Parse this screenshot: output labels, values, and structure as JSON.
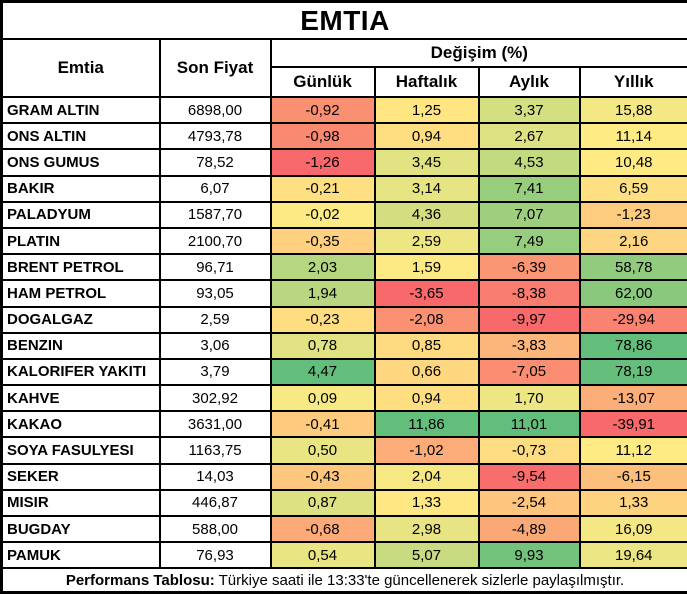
{
  "title": "EMTIA",
  "columns": {
    "emtia": "Emtia",
    "son_fiyat": "Son Fiyat",
    "degisim": "Değişim (%)",
    "periods": [
      "Günlük",
      "Haftalık",
      "Aylık",
      "Yıllık"
    ]
  },
  "heatmap_scale": {
    "min_color": "#F8696B",
    "mid_color": "#FFEB84",
    "max_color": "#63BE7B",
    "note": "red-yellow-green 3-color scale per column, midpoint at 50th percentile"
  },
  "footer": {
    "bold_label": "Performans Tablosu:",
    "text": "Türkiye saati ile 13:33'te güncellenerek sizlerle paylaşılmıştır."
  },
  "chart_data": {
    "type": "table",
    "title": "EMTIA",
    "columns": [
      "Emtia",
      "Son Fiyat",
      "Günlük",
      "Haftalık",
      "Aylık",
      "Yıllık"
    ],
    "rows": [
      {
        "name": "GRAM ALTIN",
        "son_fiyat": "6898,00",
        "changes": [
          "-0,92",
          "1,25",
          "3,37",
          "15,88"
        ]
      },
      {
        "name": "ONS ALTIN",
        "son_fiyat": "4793,78",
        "changes": [
          "-0,98",
          "0,94",
          "2,67",
          "11,14"
        ]
      },
      {
        "name": "ONS GUMUS",
        "son_fiyat": "78,52",
        "changes": [
          "-1,26",
          "3,45",
          "4,53",
          "10,48"
        ]
      },
      {
        "name": "BAKIR",
        "son_fiyat": "6,07",
        "changes": [
          "-0,21",
          "3,14",
          "7,41",
          "6,59"
        ]
      },
      {
        "name": "PALADYUM",
        "son_fiyat": "1587,70",
        "changes": [
          "-0,02",
          "4,36",
          "7,07",
          "-1,23"
        ]
      },
      {
        "name": "PLATIN",
        "son_fiyat": "2100,70",
        "changes": [
          "-0,35",
          "2,59",
          "7,49",
          "2,16"
        ]
      },
      {
        "name": "BRENT PETROL",
        "son_fiyat": "96,71",
        "changes": [
          "2,03",
          "1,59",
          "-6,39",
          "58,78"
        ]
      },
      {
        "name": "HAM PETROL",
        "son_fiyat": "93,05",
        "changes": [
          "1,94",
          "-3,65",
          "-8,38",
          "62,00"
        ]
      },
      {
        "name": "DOGALGAZ",
        "son_fiyat": "2,59",
        "changes": [
          "-0,23",
          "-2,08",
          "-9,97",
          "-29,94"
        ]
      },
      {
        "name": "BENZIN",
        "son_fiyat": "3,06",
        "changes": [
          "0,78",
          "0,85",
          "-3,83",
          "78,86"
        ]
      },
      {
        "name": "KALORIFER YAKITI",
        "son_fiyat": "3,79",
        "changes": [
          "4,47",
          "0,66",
          "-7,05",
          "78,19"
        ]
      },
      {
        "name": "KAHVE",
        "son_fiyat": "302,92",
        "changes": [
          "0,09",
          "0,94",
          "1,70",
          "-13,07"
        ]
      },
      {
        "name": "KAKAO",
        "son_fiyat": "3631,00",
        "changes": [
          "-0,41",
          "11,86",
          "11,01",
          "-39,91"
        ]
      },
      {
        "name": "SOYA FASULYESI",
        "son_fiyat": "1163,75",
        "changes": [
          "0,50",
          "-1,02",
          "-0,73",
          "11,12"
        ]
      },
      {
        "name": "SEKER",
        "son_fiyat": "14,03",
        "changes": [
          "-0,43",
          "2,04",
          "-9,54",
          "-6,15"
        ]
      },
      {
        "name": "MISIR",
        "son_fiyat": "446,87",
        "changes": [
          "0,87",
          "1,33",
          "-2,54",
          "1,33"
        ]
      },
      {
        "name": "BUGDAY",
        "son_fiyat": "588,00",
        "changes": [
          "-0,68",
          "2,98",
          "-4,89",
          "16,09"
        ]
      },
      {
        "name": "PAMUK",
        "son_fiyat": "76,93",
        "changes": [
          "0,54",
          "5,07",
          "9,93",
          "19,64"
        ]
      }
    ]
  }
}
